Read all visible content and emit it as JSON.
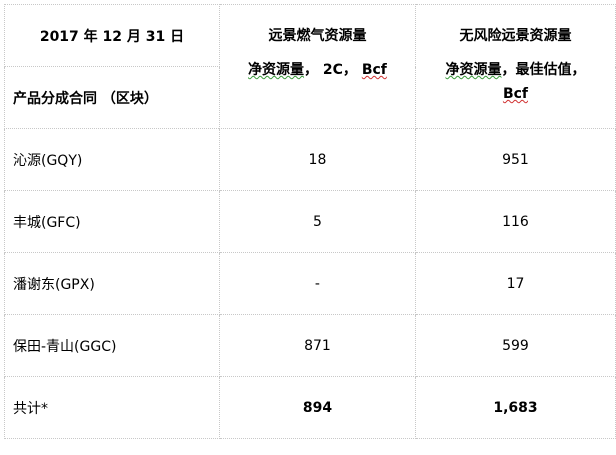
{
  "header": {
    "date": "2017 年 12 月 31 日",
    "row_label": "产品分成合同 （区块）",
    "col2_line1": "远景燃气资源量",
    "col2_line2_a": "净资源量",
    "col2_line2_b": "， 2C， ",
    "col2_line2_c": "Bcf",
    "col3_line1": "无风险远景资源量",
    "col3_line2_a": "净资源量",
    "col3_line2_b": "，最佳估值，",
    "col3_line3": "Bcf"
  },
  "rows": [
    {
      "name": "沁源(GQY)",
      "c2": "18",
      "c3": "951"
    },
    {
      "name": "丰城(GFC)",
      "c2": "5",
      "c3": "116"
    },
    {
      "name": "潘谢东(GPX)",
      "c2": "-",
      "c3": "17"
    },
    {
      "name": "保田-青山(GGC)",
      "c2": "871",
      "c3": "599"
    },
    {
      "name": "共计*",
      "c2": "894",
      "c3": "1,683"
    }
  ]
}
